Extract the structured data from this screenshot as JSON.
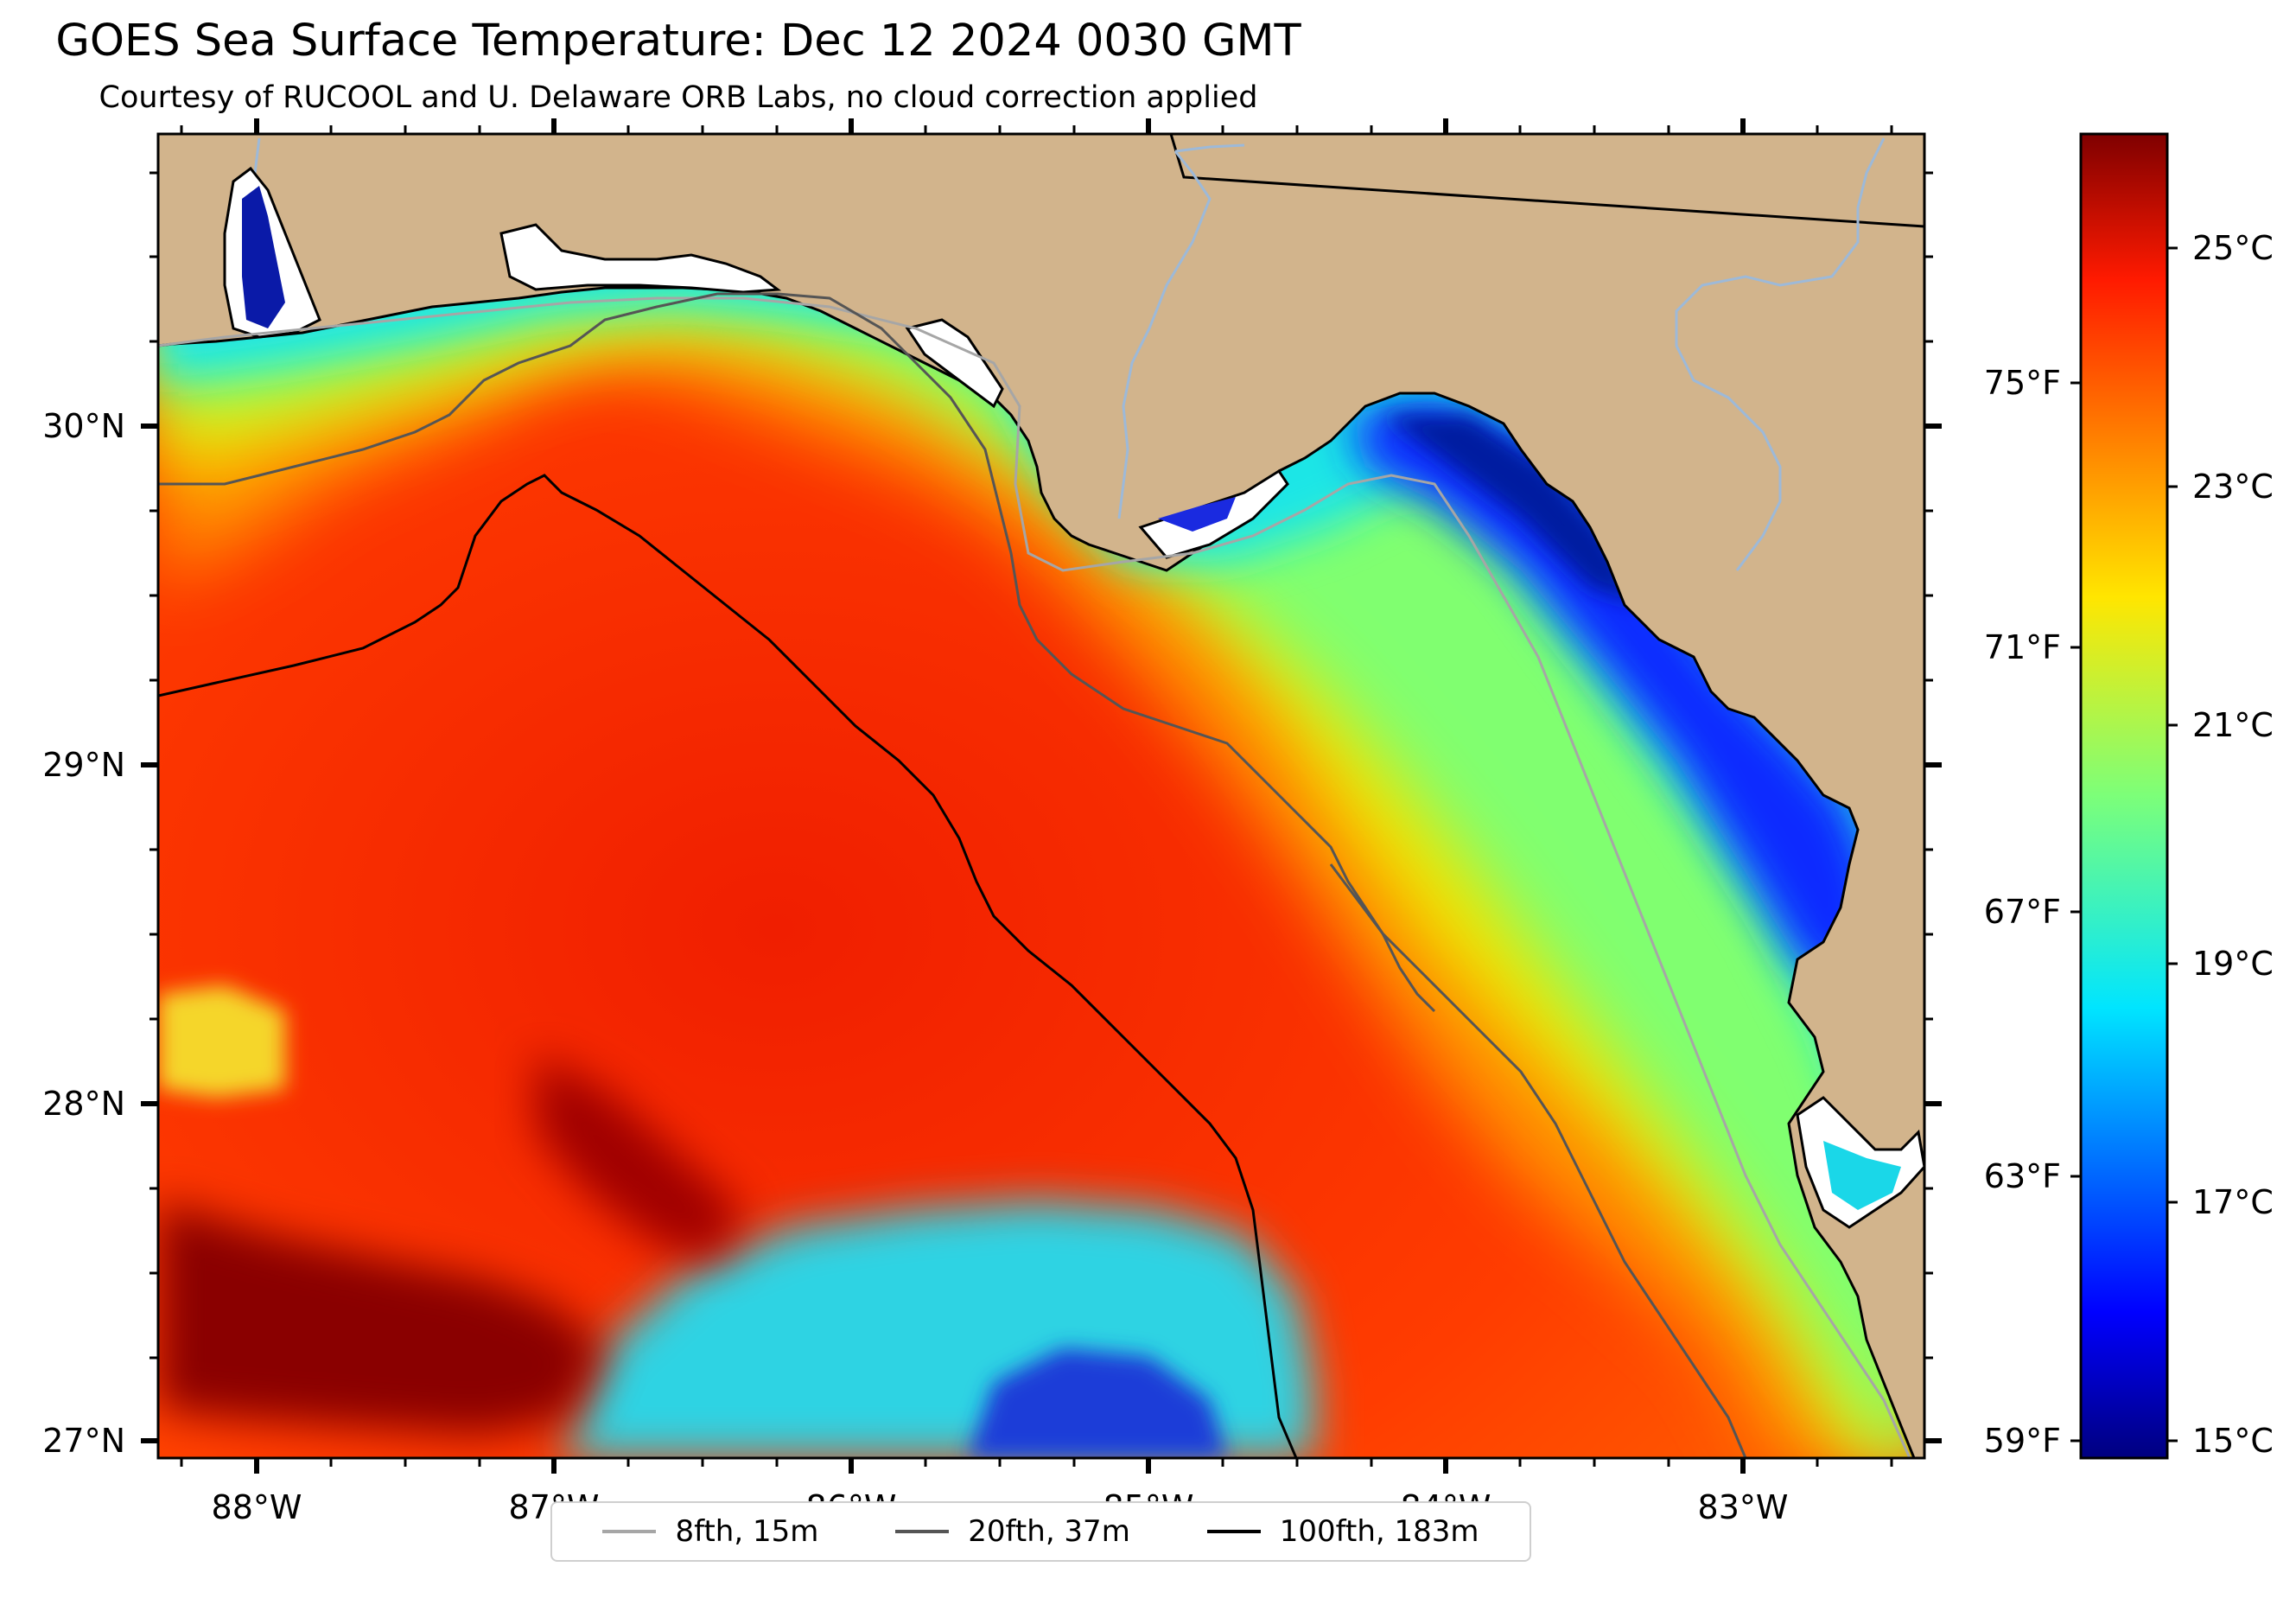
{
  "title": "GOES Sea Surface Temperature: Dec 12 2024 0030 GMT",
  "subtitle": "Courtesy of RUCOOL and U. Delaware ORB Labs, no cloud correction applied",
  "map": {
    "lat_labels": [
      "30°N",
      "29°N",
      "28°N",
      "27°N"
    ],
    "lon_labels": [
      "88°W",
      "87°W",
      "86°W",
      "85°W",
      "84°W",
      "83°W"
    ],
    "land_color": "#d2b48c",
    "coastline_color": "#000000",
    "river_color": "#9db9d8"
  },
  "colorbar": {
    "celsius_labels": [
      "25°C",
      "23°C",
      "21°C",
      "19°C",
      "17°C",
      "15°C"
    ],
    "fahrenheit_labels": [
      "75°F",
      "71°F",
      "67°F",
      "63°F",
      "59°F"
    ],
    "range_c": [
      14.9,
      26.1
    ],
    "colormap": "jet"
  },
  "legend": {
    "items": [
      {
        "label": "8fth, 15m",
        "color": "#a6a6a6"
      },
      {
        "label": "20fth, 37m",
        "color": "#555555"
      },
      {
        "label": "100fth, 183m",
        "color": "#000000"
      }
    ]
  }
}
